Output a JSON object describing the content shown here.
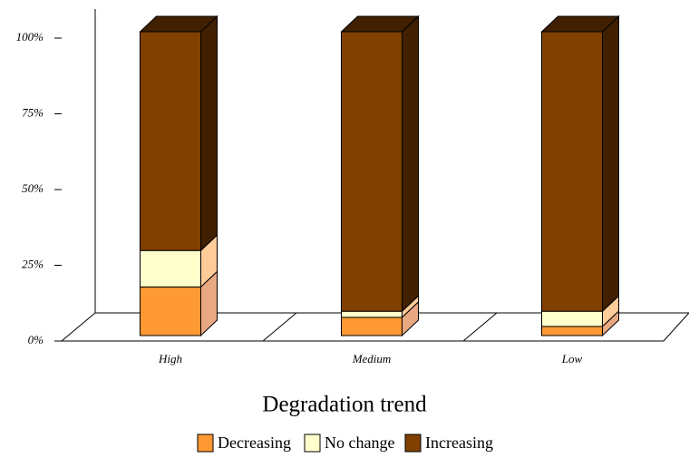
{
  "chart_data": {
    "type": "bar",
    "stacked": true,
    "x_label": "Degradation trend",
    "categories": [
      "High",
      "Medium",
      "Low"
    ],
    "series": [
      {
        "name": "Decreasing",
        "color": "#ff9933",
        "side_color": "#e8a882",
        "values": [
          16,
          6,
          3
        ]
      },
      {
        "name": "No change",
        "color": "#ffffcc",
        "side_color": "#ffcc99",
        "values": [
          12,
          2,
          5
        ]
      },
      {
        "name": "Increasing",
        "color": "#804000",
        "side_color": "#402000",
        "values": [
          72,
          92,
          92
        ]
      }
    ],
    "ylim": [
      0,
      100
    ],
    "yticks": [
      {
        "value": 0,
        "label": "0%"
      },
      {
        "value": 25,
        "label": "25%"
      },
      {
        "value": 50,
        "label": "50%"
      },
      {
        "value": 75,
        "label": "75%"
      },
      {
        "value": 100,
        "label": "100%"
      }
    ],
    "legend": "bottom"
  }
}
